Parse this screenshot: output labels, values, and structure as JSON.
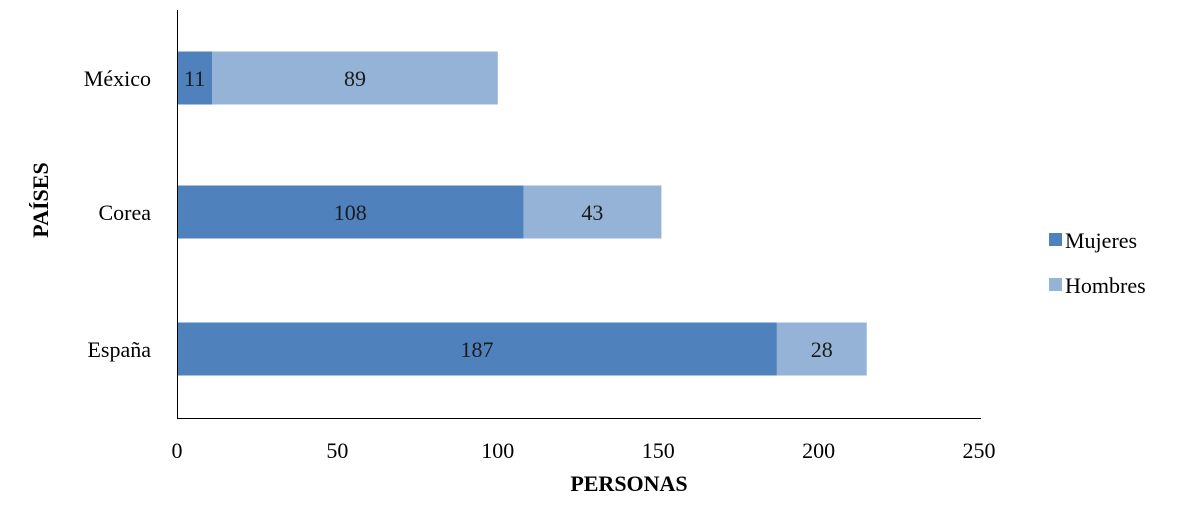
{
  "chart_data": {
    "type": "bar",
    "orientation": "horizontal",
    "stacked": true,
    "categories": [
      "México",
      "Corea",
      "España"
    ],
    "series": [
      {
        "name": "Mujeres",
        "values": [
          11,
          108,
          187
        ],
        "color": "#4f81bd"
      },
      {
        "name": "Hombres",
        "values": [
          89,
          43,
          28
        ],
        "color": "#95b3d7"
      }
    ],
    "xlabel": "PERSONAS",
    "ylabel": "PAÍSES",
    "xlim": [
      0,
      250
    ],
    "xticks": [
      0,
      50,
      100,
      150,
      200,
      250
    ],
    "grid": false,
    "legend_position": "right"
  }
}
